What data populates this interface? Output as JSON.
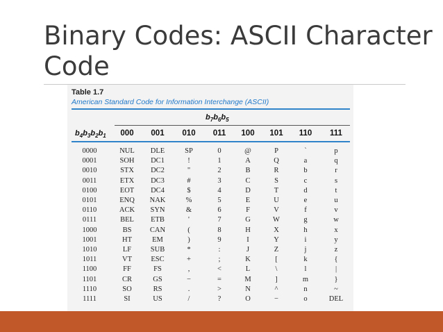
{
  "slide": {
    "title_line1": "Binary Codes: ASCII Character",
    "title_line2": "Code"
  },
  "table": {
    "caption": "Table 1.7",
    "subcaption": "American Standard Code for Information Interchange (ASCII)",
    "group_header": {
      "b": "b",
      "s1": "7",
      "s2": "6",
      "s3": "5"
    },
    "row_header": {
      "b": "b",
      "s1": "4",
      "s2": "3",
      "s3": "2",
      "s4": "1"
    },
    "columns": [
      "000",
      "001",
      "010",
      "011",
      "100",
      "101",
      "110",
      "111"
    ],
    "rows": [
      {
        "code": "0000",
        "cells": [
          "NUL",
          "DLE",
          "SP",
          "0",
          "@",
          "P",
          "`",
          "p"
        ]
      },
      {
        "code": "0001",
        "cells": [
          "SOH",
          "DC1",
          "!",
          "1",
          "A",
          "Q",
          "a",
          "q"
        ]
      },
      {
        "code": "0010",
        "cells": [
          "STX",
          "DC2",
          "\"",
          "2",
          "B",
          "R",
          "b",
          "r"
        ]
      },
      {
        "code": "0011",
        "cells": [
          "ETX",
          "DC3",
          "#",
          "3",
          "C",
          "S",
          "c",
          "s"
        ]
      },
      {
        "code": "0100",
        "cells": [
          "EOT",
          "DC4",
          "$",
          "4",
          "D",
          "T",
          "d",
          "t"
        ]
      },
      {
        "code": "0101",
        "cells": [
          "ENQ",
          "NAK",
          "%",
          "5",
          "E",
          "U",
          "e",
          "u"
        ]
      },
      {
        "code": "0110",
        "cells": [
          "ACK",
          "SYN",
          "&",
          "6",
          "F",
          "V",
          "f",
          "v"
        ]
      },
      {
        "code": "0111",
        "cells": [
          "BEL",
          "ETB",
          "'",
          "7",
          "G",
          "W",
          "g",
          "w"
        ]
      },
      {
        "code": "1000",
        "cells": [
          "BS",
          "CAN",
          "(",
          "8",
          "H",
          "X",
          "h",
          "x"
        ]
      },
      {
        "code": "1001",
        "cells": [
          "HT",
          "EM",
          ")",
          "9",
          "I",
          "Y",
          "i",
          "y"
        ]
      },
      {
        "code": "1010",
        "cells": [
          "LF",
          "SUB",
          "*",
          ":",
          "J",
          "Z",
          "j",
          "z"
        ]
      },
      {
        "code": "1011",
        "cells": [
          "VT",
          "ESC",
          "+",
          ";",
          "K",
          "[",
          "k",
          "{"
        ]
      },
      {
        "code": "1100",
        "cells": [
          "FF",
          "FS",
          ",",
          "<",
          "L",
          "\\",
          "l",
          "|"
        ]
      },
      {
        "code": "1101",
        "cells": [
          "CR",
          "GS",
          "−",
          "=",
          "M",
          "]",
          "m",
          "}"
        ]
      },
      {
        "code": "1110",
        "cells": [
          "SO",
          "RS",
          ".",
          ">",
          "N",
          "^",
          "n",
          "~"
        ]
      },
      {
        "code": "1111",
        "cells": [
          "SI",
          "US",
          "/",
          "?",
          "O",
          "−",
          "o",
          "DEL"
        ]
      }
    ]
  },
  "colors": {
    "accent_blue": "#2f83c9",
    "band_orange": "#c0582a",
    "title_gray": "#3b3b3b"
  }
}
